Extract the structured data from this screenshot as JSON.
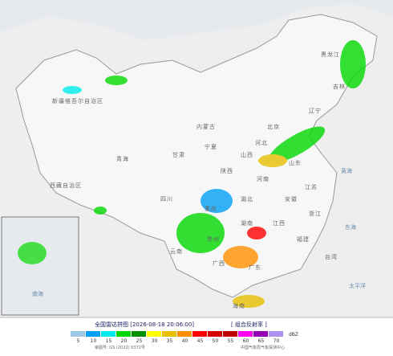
{
  "map": {
    "labels": [
      "新疆维吾尔自治区",
      "西藏自治区",
      "青海",
      "甘肃",
      "内蒙古",
      "黑龙江",
      "吉林",
      "辽宁",
      "北京",
      "河北",
      "山西",
      "陕西",
      "宁夏",
      "四川",
      "重庆",
      "湖北",
      "河南",
      "山东",
      "江苏",
      "安徽",
      "浙江",
      "江西",
      "湖南",
      "贵州",
      "云南",
      "广西",
      "广东",
      "福建",
      "台湾",
      "海南",
      "黄海",
      "东海",
      "太平洋",
      "南海"
    ]
  },
  "legend": {
    "title": "全国雷达拼图 [2026-08-18 20:06:00]",
    "product": "[ 组合反射率 ]",
    "unit": "dBZ",
    "levels": [
      {
        "value": 5,
        "color": "#9ec8e8"
      },
      {
        "value": 10,
        "color": "#01a0f6"
      },
      {
        "value": 15,
        "color": "#00ecec"
      },
      {
        "value": 20,
        "color": "#00d800"
      },
      {
        "value": 25,
        "color": "#019000"
      },
      {
        "value": 30,
        "color": "#ffff00"
      },
      {
        "value": 35,
        "color": "#e7c000"
      },
      {
        "value": 40,
        "color": "#ff9000"
      },
      {
        "value": 45,
        "color": "#ff0000"
      },
      {
        "value": 50,
        "color": "#d60000"
      },
      {
        "value": 55,
        "color": "#c00000"
      },
      {
        "value": 60,
        "color": "#ff00f0"
      },
      {
        "value": 65,
        "color": "#9600b4"
      },
      {
        "value": 70,
        "color": "#ad90f0"
      }
    ]
  },
  "footer": {
    "approval": "审图号: GS (2022) 0372号",
    "source": "中国气象局气象探测中心"
  }
}
